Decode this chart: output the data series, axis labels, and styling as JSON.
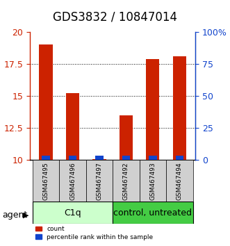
{
  "title": "GDS3832 / 10847014",
  "samples": [
    "GSM467495",
    "GSM467496",
    "GSM467497",
    "GSM467492",
    "GSM467493",
    "GSM467494"
  ],
  "count_values": [
    19.0,
    15.2,
    10.05,
    13.5,
    17.9,
    18.1
  ],
  "percentile_values": [
    3.5,
    3.5,
    3.5,
    3.5,
    3.5,
    3.5
  ],
  "ylim": [
    10,
    20
  ],
  "y2lim": [
    0,
    100
  ],
  "yticks": [
    10,
    12.5,
    15,
    17.5,
    20
  ],
  "y2ticks": [
    0,
    25,
    50,
    75,
    100
  ],
  "ytick_labels": [
    "10",
    "12.5",
    "15",
    "17.5",
    "20"
  ],
  "y2tick_labels": [
    "0",
    "25",
    "50",
    "75",
    "100%"
  ],
  "bar_width": 0.5,
  "bar_color_red": "#cc2200",
  "bar_color_blue": "#1144cc",
  "grid_color": "#000000",
  "group1_label": "C1q",
  "group2_label": "control, untreated",
  "group1_indices": [
    0,
    1,
    2
  ],
  "group2_indices": [
    3,
    4,
    5
  ],
  "group1_color": "#ccffcc",
  "group2_color": "#44cc44",
  "agent_label": "agent",
  "legend_count": "count",
  "legend_pct": "percentile rank within the sample",
  "ylabel_color_red": "#cc2200",
  "ylabel_color_blue": "#1144cc",
  "title_fontsize": 12,
  "tick_fontsize": 9,
  "label_fontsize": 9,
  "bar_baseline": 10,
  "percentile_bar_scale": 0.1
}
